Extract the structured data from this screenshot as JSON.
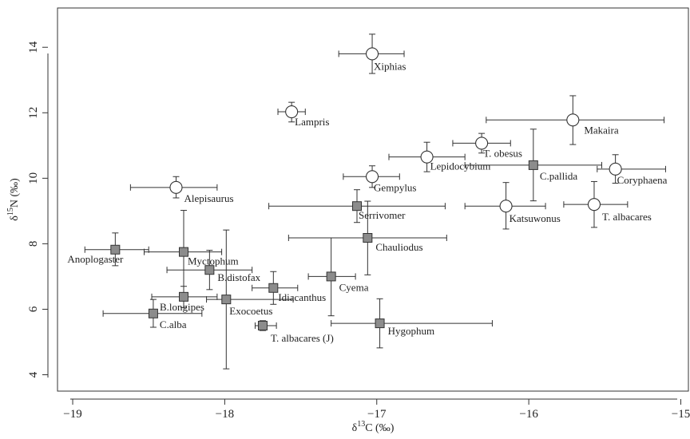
{
  "chart_data": {
    "type": "scatter",
    "title": "",
    "xlabel": {
      "main": "δ",
      "sup": "13",
      "rest": "C (‰)"
    },
    "ylabel": {
      "main": "δ",
      "sup": "15",
      "rest": "N (‰)"
    },
    "xlim": [
      -19.1,
      -14.95
    ],
    "ylim": [
      3.5,
      15.2
    ],
    "xticks": [
      {
        "value": -19,
        "label": "−19"
      },
      {
        "value": -18,
        "label": "−18"
      },
      {
        "value": -17,
        "label": "−17"
      },
      {
        "value": -16,
        "label": "−16"
      },
      {
        "value": -15,
        "label": "−15"
      }
    ],
    "yticks": [
      {
        "value": 4,
        "label": "4"
      },
      {
        "value": 6,
        "label": "6"
      },
      {
        "value": 8,
        "label": "8"
      },
      {
        "value": 10,
        "label": "10"
      },
      {
        "value": 12,
        "label": "12"
      },
      {
        "value": 14,
        "label": "14"
      }
    ],
    "grid": false,
    "legend": "none",
    "marker_styles": {
      "open": {
        "shape": "open-circle"
      },
      "square": {
        "shape": "filled-square",
        "fill": "#8c8c8c"
      }
    },
    "points": [
      {
        "label": "Xiphias",
        "x": -17.03,
        "y": 13.8,
        "xerr_low": -17.25,
        "xerr_high": -16.82,
        "yerr_low": 13.2,
        "yerr_high": 14.4,
        "marker": "open",
        "label_dx": 2,
        "label_dy": 20
      },
      {
        "label": "Lampris",
        "x": -17.56,
        "y": 12.03,
        "xerr_low": -17.65,
        "xerr_high": -17.47,
        "yerr_low": 11.72,
        "yerr_high": 12.32,
        "marker": "open",
        "label_dx": 4,
        "label_dy": 17
      },
      {
        "label": "Makaira",
        "x": -15.71,
        "y": 11.78,
        "xerr_low": -16.28,
        "xerr_high": -15.11,
        "yerr_low": 11.03,
        "yerr_high": 12.52,
        "marker": "open",
        "label_dx": 14,
        "label_dy": 17
      },
      {
        "label": "T. obesus",
        "x": -16.31,
        "y": 11.07,
        "xerr_low": -16.5,
        "xerr_high": -16.12,
        "yerr_low": 10.77,
        "yerr_high": 11.37,
        "marker": "open",
        "label_dx": 2,
        "label_dy": 17
      },
      {
        "label": "Lepidocybium",
        "x": -16.67,
        "y": 10.65,
        "xerr_low": -16.92,
        "xerr_high": -16.42,
        "yerr_low": 10.2,
        "yerr_high": 11.1,
        "marker": "open",
        "label_dx": 4,
        "label_dy": 16
      },
      {
        "label": "C.pallida",
        "x": -15.97,
        "y": 10.4,
        "xerr_low": -16.42,
        "xerr_high": -15.52,
        "yerr_low": 9.31,
        "yerr_high": 11.5,
        "marker": "square",
        "label_dx": 8,
        "label_dy": 18
      },
      {
        "label": "Coryphaena",
        "x": -15.43,
        "y": 10.28,
        "xerr_low": -15.55,
        "xerr_high": -15.1,
        "yerr_low": 9.85,
        "yerr_high": 10.72,
        "marker": "open",
        "label_dx": 2,
        "label_dy": 18
      },
      {
        "label": "Gempylus",
        "x": -17.03,
        "y": 10.05,
        "xerr_low": -17.22,
        "xerr_high": -16.85,
        "yerr_low": 9.72,
        "yerr_high": 10.38,
        "marker": "open",
        "label_dx": 2,
        "label_dy": 18
      },
      {
        "label": "Alepisaurus",
        "x": -18.32,
        "y": 9.72,
        "xerr_low": -18.62,
        "xerr_high": -18.05,
        "yerr_low": 9.4,
        "yerr_high": 10.05,
        "marker": "open",
        "label_dx": 10,
        "label_dy": 18
      },
      {
        "label": "Katsuwonus",
        "x": -16.15,
        "y": 9.15,
        "xerr_low": -16.42,
        "xerr_high": -15.89,
        "yerr_low": 8.45,
        "yerr_high": 9.87,
        "marker": "open",
        "label_dx": 4,
        "label_dy": 20
      },
      {
        "label": "T. albacares",
        "x": -15.57,
        "y": 9.2,
        "xerr_low": -15.77,
        "xerr_high": -15.35,
        "yerr_low": 8.5,
        "yerr_high": 9.9,
        "marker": "open",
        "label_dx": 10,
        "label_dy": 20
      },
      {
        "label": "Serrivomer",
        "x": -17.13,
        "y": 9.15,
        "xerr_low": -17.71,
        "xerr_high": -16.55,
        "yerr_low": 8.65,
        "yerr_high": 9.65,
        "marker": "square",
        "label_dx": 2,
        "label_dy": 16
      },
      {
        "label": "Chauliodus",
        "x": -17.06,
        "y": 8.18,
        "xerr_low": -17.58,
        "xerr_high": -16.54,
        "yerr_low": 7.05,
        "yerr_high": 9.3,
        "marker": "square",
        "label_dx": 10,
        "label_dy": 16
      },
      {
        "label": "Anoplogaster",
        "x": -18.72,
        "y": 7.82,
        "xerr_low": -18.92,
        "xerr_high": -18.5,
        "yerr_low": 7.33,
        "yerr_high": 8.33,
        "marker": "square",
        "label_dx": -60,
        "label_dy": 16
      },
      {
        "label": "Myctophum",
        "x": -18.27,
        "y": 7.75,
        "xerr_low": -18.53,
        "xerr_high": -18.02,
        "yerr_low": 6.5,
        "yerr_high": 9.02,
        "marker": "square",
        "label_dx": 5,
        "label_dy": 16
      },
      {
        "label": "B.distofax",
        "x": -18.1,
        "y": 7.2,
        "xerr_low": -18.38,
        "xerr_high": -17.82,
        "yerr_low": 6.6,
        "yerr_high": 7.8,
        "marker": "square",
        "label_dx": 10,
        "label_dy": 14
      },
      {
        "label": "Cyema",
        "x": -17.3,
        "y": 7.0,
        "xerr_low": -17.45,
        "xerr_high": -17.14,
        "yerr_low": 5.8,
        "yerr_high": 8.18,
        "marker": "square",
        "label_dx": 10,
        "label_dy": 18
      },
      {
        "label": "Idiacanthus",
        "x": -17.68,
        "y": 6.65,
        "xerr_low": -17.82,
        "xerr_high": -17.52,
        "yerr_low": 6.15,
        "yerr_high": 7.15,
        "marker": "square",
        "label_dx": 6,
        "label_dy": 16
      },
      {
        "label": "B.longipes",
        "x": -18.27,
        "y": 6.38,
        "xerr_low": -18.48,
        "xerr_high": -18.05,
        "yerr_low": 6.05,
        "yerr_high": 6.7,
        "marker": "square",
        "label_dx": -30,
        "label_dy": 17
      },
      {
        "label": "Exocoetus",
        "x": -17.99,
        "y": 6.3,
        "xerr_low": -18.12,
        "xerr_high": -17.55,
        "yerr_low": 4.18,
        "yerr_high": 8.42,
        "marker": "square",
        "label_dx": 4,
        "label_dy": 19
      },
      {
        "label": "C.alba",
        "x": -18.47,
        "y": 5.87,
        "xerr_low": -18.8,
        "xerr_high": -18.15,
        "yerr_low": 5.45,
        "yerr_high": 6.3,
        "marker": "square",
        "label_dx": 8,
        "label_dy": 18
      },
      {
        "label": "T. albacares (J)",
        "x": -17.75,
        "y": 5.5,
        "xerr_low": -17.8,
        "xerr_high": -17.66,
        "yerr_low": 5.35,
        "yerr_high": 5.65,
        "marker": "square",
        "label_dx": 10,
        "label_dy": 20
      },
      {
        "label": "Hygophum",
        "x": -16.98,
        "y": 5.57,
        "xerr_low": -17.3,
        "xerr_high": -16.24,
        "yerr_low": 4.82,
        "yerr_high": 6.32,
        "marker": "square",
        "label_dx": 10,
        "label_dy": 14
      }
    ]
  }
}
